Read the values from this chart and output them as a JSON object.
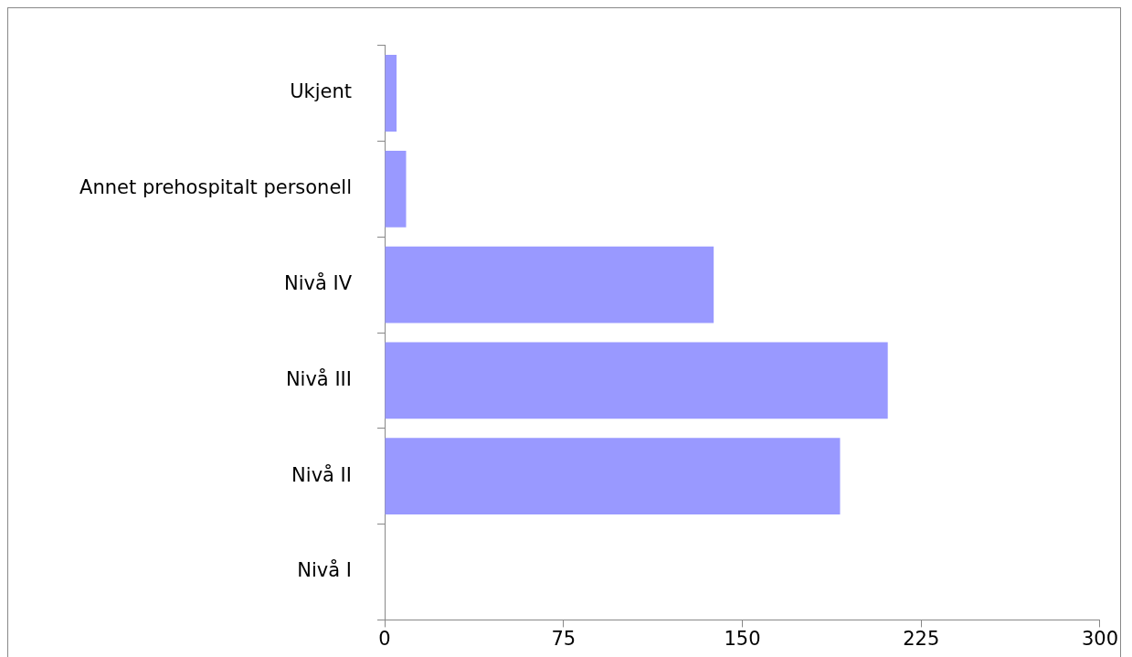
{
  "chart_data": {
    "type": "bar",
    "orientation": "horizontal",
    "categories": [
      "Ukjent",
      "Annet prehospitalt personell",
      "Nivå IV",
      "Nivå III",
      "Nivå II",
      "Nivå I"
    ],
    "values": [
      5,
      9,
      138,
      211,
      191,
      0
    ],
    "color": "#9999ff",
    "xlim": [
      0,
      300
    ],
    "xticks": [
      0,
      75,
      150,
      225,
      300
    ],
    "grid": false,
    "legend": false
  }
}
